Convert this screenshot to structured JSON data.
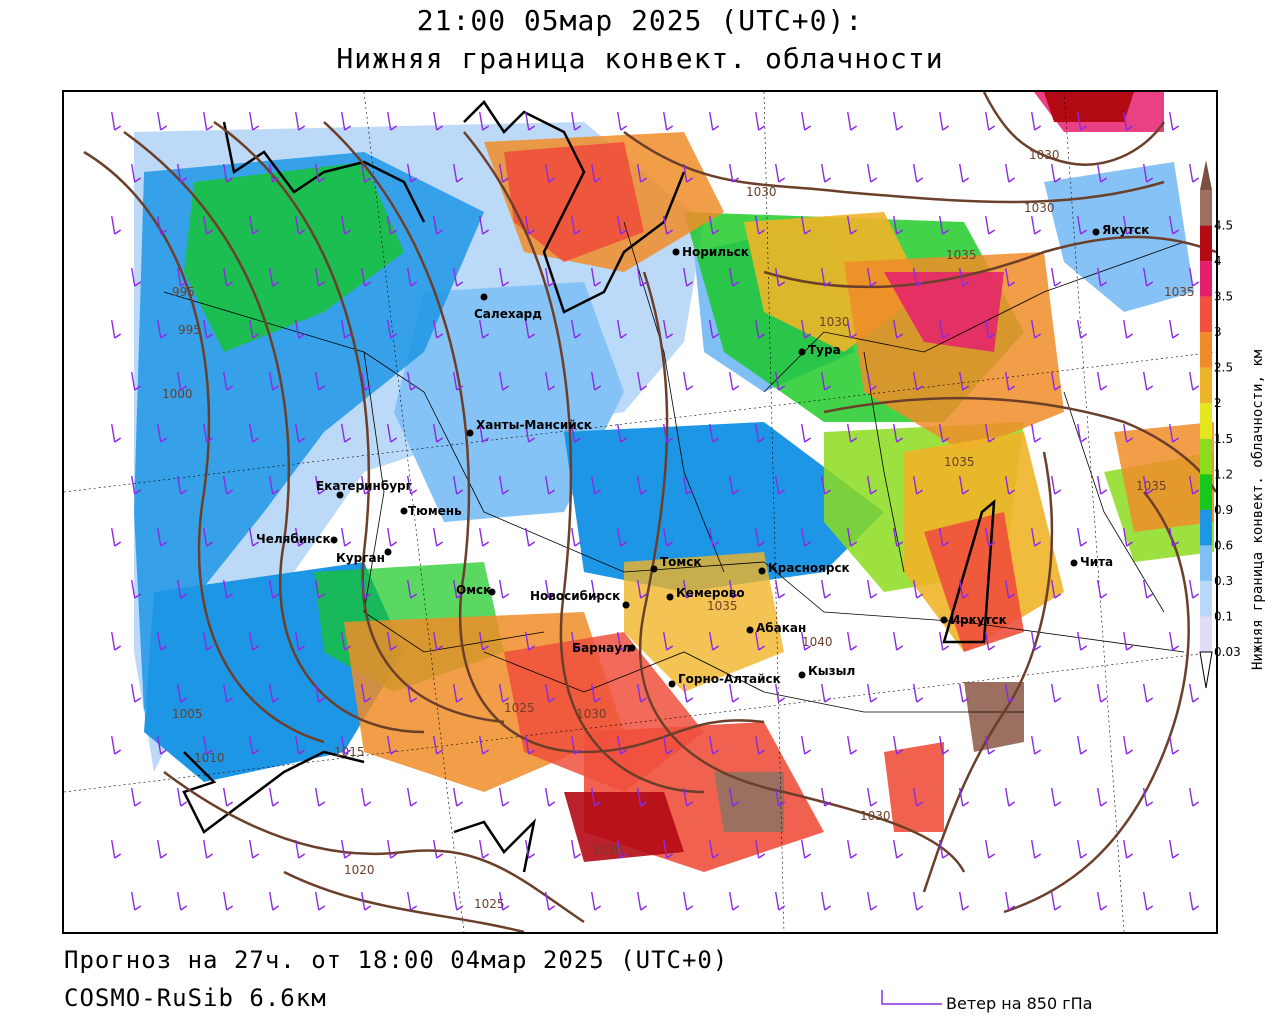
{
  "title": {
    "line1": "21:00 05мар 2025 (UTC+0):",
    "line2": "Нижняя граница конвект. облачности"
  },
  "footer": {
    "forecast": "Прогноз на 27ч. от 18:00 04мар 2025 (UTC+0)",
    "model": "COSMO-RuSib 6.6км",
    "wind_legend": "Ветер на 850 гПа"
  },
  "legend": {
    "axis_label": "Нижняя граница конвект. облачности, км",
    "ticks": [
      "0.03",
      "0.1",
      "0.3",
      "0.6",
      "0.9",
      "1.2",
      "1.5",
      "2",
      "2.5",
      "3",
      "3.5",
      "4",
      "4.5"
    ],
    "colors": [
      "#e0dcf5",
      "#b8d8f8",
      "#7fbff5",
      "#1e96e6",
      "#14c81e",
      "#8cdc1e",
      "#e6e61e",
      "#f0b428",
      "#f08c28",
      "#f0503c",
      "#e61e6e",
      "#b40a14",
      "#9b7060"
    ]
  },
  "cities": [
    {
      "name": "Норильск"
    },
    {
      "name": "Салехард"
    },
    {
      "name": "Тура"
    },
    {
      "name": "Якутск"
    },
    {
      "name": "Ханты-Мансийск"
    },
    {
      "name": "Екатеринбург"
    },
    {
      "name": "Тюмень"
    },
    {
      "name": "Челябинск"
    },
    {
      "name": "Курган"
    },
    {
      "name": "Омск"
    },
    {
      "name": "Новосибирск"
    },
    {
      "name": "Томск"
    },
    {
      "name": "Кемерово"
    },
    {
      "name": "Красноярск"
    },
    {
      "name": "Абакан"
    },
    {
      "name": "Барнаул"
    },
    {
      "name": "Горно-Алтайск"
    },
    {
      "name": "Кызыл"
    },
    {
      "name": "Иркутск"
    },
    {
      "name": "Чита"
    }
  ],
  "isobar_labels": [
    "1030",
    "1030",
    "1030",
    "1035",
    "1035",
    "1030",
    "1035",
    "1035",
    "1035",
    "1040",
    "1030",
    "1025",
    "1015",
    "1010",
    "1005",
    "1020",
    "1025",
    "1030",
    "1030",
    "1000",
    "995",
    "995"
  ]
}
